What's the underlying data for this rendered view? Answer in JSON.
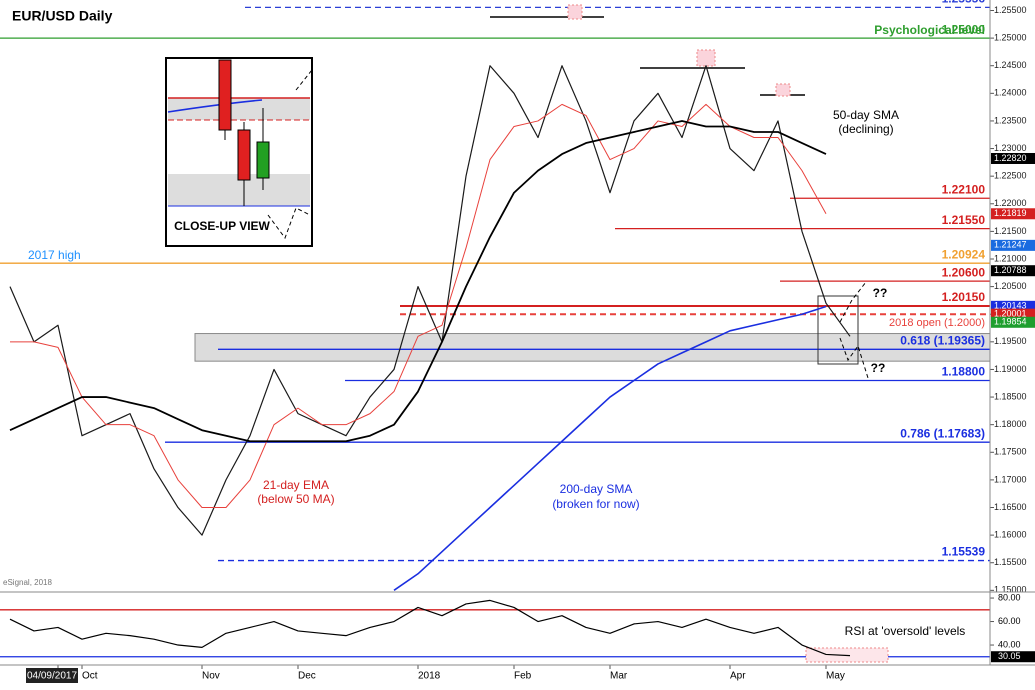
{
  "chart_data": {
    "type": "line",
    "title": "EUR/USD Daily",
    "categories": [
      null,
      null,
      "04/09/2017",
      "Oct",
      null,
      null,
      null,
      null,
      "Nov",
      null,
      null,
      null,
      "Dec",
      null,
      null,
      null,
      null,
      "2018",
      null,
      null,
      null,
      "Feb",
      null,
      null,
      null,
      "Mar",
      null,
      null,
      null,
      null,
      "Apr",
      null,
      null,
      null,
      "May",
      null
    ],
    "series": [
      {
        "color": "#1a1a1a",
        "values": [
          1.205,
          1.195,
          1.198,
          1.178,
          1.18,
          1.182,
          1.172,
          1.165,
          1.16,
          1.17,
          1.178,
          1.19,
          1.182,
          1.18,
          1.178,
          1.185,
          1.19,
          1.205,
          1.195,
          1.225,
          1.245,
          1.24,
          1.232,
          1.245,
          1.235,
          1.222,
          1.235,
          1.24,
          1.232,
          1.245,
          1.23,
          1.226,
          1.235,
          1.215,
          1.202,
          1.196
        ]
      },
      {
        "color": "#e8413c",
        "values": [
          1.195,
          1.195,
          1.194,
          1.185,
          1.18,
          1.18,
          1.178,
          1.17,
          1.165,
          1.165,
          1.17,
          1.18,
          1.183,
          1.18,
          1.18,
          1.182,
          1.186,
          1.196,
          1.198,
          1.212,
          1.228,
          1.234,
          1.235,
          1.238,
          1.236,
          1.228,
          1.23,
          1.235,
          1.234,
          1.238,
          1.234,
          1.232,
          1.232,
          1.226,
          1.2182,
          null
        ]
      },
      {
        "color": "#000000",
        "values": [
          1.179,
          1.181,
          1.183,
          1.185,
          1.185,
          1.184,
          1.183,
          1.181,
          1.179,
          1.178,
          1.177,
          1.177,
          1.177,
          1.177,
          1.177,
          1.178,
          1.18,
          1.186,
          1.195,
          1.205,
          1.214,
          1.222,
          1.226,
          1.229,
          1.231,
          1.232,
          1.233,
          1.234,
          1.235,
          1.234,
          1.234,
          1.233,
          1.233,
          1.231,
          1.229,
          null
        ]
      },
      {
        "color": "#1a2ee0",
        "values": [
          null,
          null,
          null,
          null,
          null,
          null,
          null,
          null,
          null,
          null,
          null,
          null,
          null,
          null,
          null,
          null,
          1.15,
          1.153,
          1.157,
          1.161,
          1.165,
          1.169,
          1.173,
          1.177,
          1.181,
          1.185,
          1.188,
          1.191,
          1.193,
          1.195,
          1.197,
          1.198,
          1.199,
          1.2,
          1.2014,
          null
        ]
      }
    ],
    "ylim": [
      1.1497,
      1.2569
    ],
    "yticks": [
      {
        "value": 1.15,
        "label": "1.15000"
      },
      {
        "value": 1.155,
        "label": "1.15500"
      },
      {
        "value": 1.16,
        "label": "1.16000"
      },
      {
        "value": 1.165,
        "label": "1.16500"
      },
      {
        "value": 1.17,
        "label": "1.17000"
      },
      {
        "value": 1.175,
        "label": "1.17500"
      },
      {
        "value": 1.18,
        "label": "1.18000"
      },
      {
        "value": 1.185,
        "label": "1.18500"
      },
      {
        "value": 1.19,
        "label": "1.19000"
      },
      {
        "value": 1.195,
        "label": "1.19500"
      },
      {
        "value": 1.2,
        "label": "1.20000"
      },
      {
        "value": 1.205,
        "label": "1.20500"
      },
      {
        "value": 1.21,
        "label": "1.21000"
      },
      {
        "value": 1.215,
        "label": "1.21500"
      },
      {
        "value": 1.22,
        "label": "1.22000"
      },
      {
        "value": 1.225,
        "label": "1.22500"
      },
      {
        "value": 1.23,
        "label": "1.23000"
      },
      {
        "value": 1.235,
        "label": "1.23500"
      },
      {
        "value": 1.24,
        "label": "1.24000"
      },
      {
        "value": 1.245,
        "label": "1.24500"
      },
      {
        "value": 1.25,
        "label": "1.25000"
      },
      {
        "value": 1.255,
        "label": "1.25500"
      }
    ],
    "levels": [
      {
        "value": 1.25556,
        "label": "1.25556",
        "color": "#2b3fd6",
        "style": "dashed"
      },
      {
        "value": 1.25,
        "label": "1.25000",
        "color": "#2e9e2e",
        "style": "solid"
      },
      {
        "value": 1.221,
        "label": "1.22100",
        "color": "#d42020",
        "style": "solid"
      },
      {
        "value": 1.2155,
        "label": "1.21550",
        "color": "#d42020",
        "style": "solid"
      },
      {
        "value": 1.20924,
        "label": "1.20924",
        "color": "#f0a030",
        "style": "solid"
      },
      {
        "value": 1.206,
        "label": "1.20600",
        "color": "#d42020",
        "style": "solid"
      },
      {
        "value": 1.2015,
        "label": "1.20150",
        "color": "#d42020",
        "style": "solid"
      },
      {
        "value": 1.2,
        "label": "2018 open (1.2000)",
        "color": "#e8413c",
        "style": "dashed"
      },
      {
        "value": 1.19365,
        "label": "0.618 (1.19365)",
        "color": "#1a2ee0",
        "style": "solid"
      },
      {
        "value": 1.188,
        "label": "1.18800",
        "color": "#1a2ee0",
        "style": "solid"
      },
      {
        "value": 1.17683,
        "label": "0.786 (1.17683)",
        "color": "#1a2ee0",
        "style": "solid"
      },
      {
        "value": 1.15539,
        "label": "1.15539",
        "color": "#1a2ee0",
        "style": "dashed"
      }
    ],
    "zone": [
      1.1915,
      1.1965
    ],
    "badges": [
      {
        "value": 1.2282,
        "label": "1.22820",
        "color": "#000000"
      },
      {
        "value": 1.21819,
        "label": "1.21819",
        "color": "#d42020"
      },
      {
        "value": 1.21247,
        "label": "1.21247",
        "color": "#1a6be0"
      },
      {
        "value": 1.20788,
        "label": "1.20788",
        "color": "#000000"
      },
      {
        "value": 1.20143,
        "label": "1.20143",
        "color": "#1a2ee0"
      },
      {
        "value": 1.20001,
        "label": "1.20001",
        "color": "#d42020"
      },
      {
        "value": 1.19854,
        "label": "1.19854",
        "color": "#1e9e2e"
      }
    ],
    "annotations": [
      "Psychological level",
      "2017 high",
      "50-day SMA",
      "(declining)",
      "21-day EMA",
      "(below 50 MA)",
      "200-day SMA",
      "(broken for now)",
      "RSI at 'oversold' levels",
      "??",
      "??",
      "CLOSE-UP VIEW",
      "eSignal, 2018"
    ],
    "rsi": {
      "color": "#000000",
      "values": [
        62,
        52,
        55,
        45,
        50,
        48,
        45,
        40,
        38,
        50,
        55,
        60,
        52,
        50,
        48,
        55,
        60,
        72,
        65,
        75,
        78,
        72,
        60,
        65,
        55,
        50,
        58,
        60,
        55,
        62,
        55,
        50,
        55,
        40,
        32,
        31
      ],
      "ylim": [
        23,
        84.3
      ],
      "yticks": [
        {
          "value": 80,
          "label": "80.00"
        },
        {
          "value": 60,
          "label": "60.00"
        },
        {
          "value": 40,
          "label": "40.00"
        }
      ],
      "levels": [
        70,
        30
      ],
      "badge": {
        "value": 30.05,
        "label": "30.05"
      }
    }
  }
}
